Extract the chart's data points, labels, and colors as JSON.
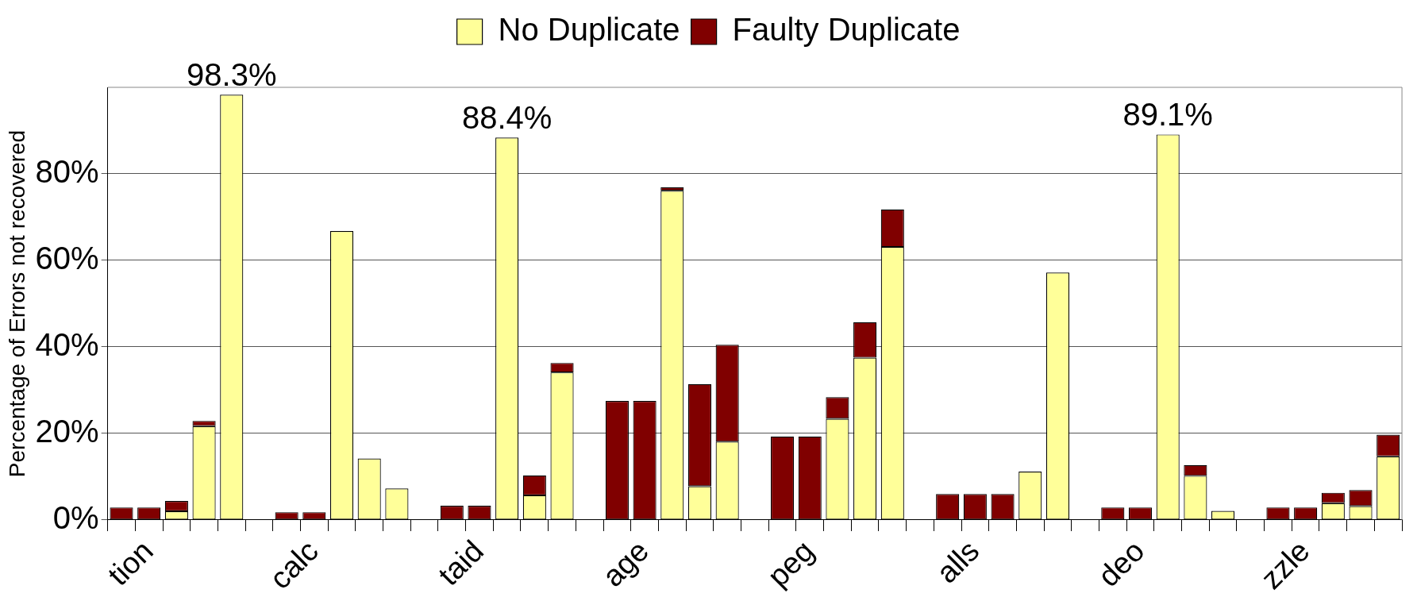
{
  "chart_data": {
    "type": "bar",
    "stacked": true,
    "grid": "y",
    "legend": "top",
    "ylabel": "Percentage of Errors not recovered",
    "categories": [
      null,
      "tion",
      null,
      null,
      null,
      null,
      null,
      "calc",
      null,
      null,
      null,
      null,
      null,
      "taid",
      null,
      null,
      null,
      null,
      null,
      "age",
      null,
      null,
      null,
      null,
      null,
      "peg",
      null,
      null,
      null,
      null,
      null,
      "alls",
      null,
      null,
      null,
      null,
      null,
      "deo",
      null,
      null,
      null,
      null,
      null,
      "zzle",
      null,
      null,
      null
    ],
    "ylim": [
      0,
      100
    ],
    "yticks": [
      {
        "value": 0,
        "label": "0%"
      },
      {
        "value": 20,
        "label": "20%"
      },
      {
        "value": 40,
        "label": "40%"
      },
      {
        "value": 60,
        "label": "60%"
      },
      {
        "value": 80,
        "label": "80%"
      }
    ],
    "series": [
      {
        "name": "No Duplicate",
        "color": "#ffff99",
        "values": [
          0,
          0,
          2.0,
          21.7,
          98.3,
          null,
          0,
          0,
          66.8,
          14.2,
          7.3,
          null,
          0,
          0,
          88.4,
          5.7,
          34.1,
          null,
          0,
          0,
          76.1,
          7.8,
          18.1,
          null,
          0,
          0,
          23.4,
          37.5,
          63.1,
          null,
          0,
          0,
          0,
          11.2,
          57.2,
          null,
          0,
          0,
          89.1,
          10.2,
          2.1,
          null,
          0,
          0,
          3.9,
          3.2,
          14.7
        ],
        "value_labels": [
          null,
          null,
          null,
          null,
          "98.3%",
          null,
          null,
          null,
          null,
          null,
          null,
          null,
          null,
          null,
          "88.4%",
          null,
          null,
          null,
          null,
          null,
          null,
          null,
          null,
          null,
          null,
          null,
          null,
          null,
          null,
          null,
          null,
          null,
          null,
          null,
          null,
          null,
          null,
          null,
          "89.1%",
          null,
          null,
          null,
          null,
          null,
          null,
          null,
          null
        ]
      },
      {
        "name": "Faulty Duplicate",
        "color": "#800000",
        "values": [
          2.9,
          2.9,
          2.4,
          1.2,
          0,
          null,
          1.8,
          1.8,
          0,
          0,
          0,
          null,
          3.3,
          3.3,
          0,
          4.6,
          2.2,
          null,
          27.5,
          27.5,
          0.8,
          23.6,
          22.4,
          null,
          19.3,
          19.3,
          5.0,
          8.2,
          8.7,
          null,
          6.0,
          6.0,
          6.0,
          0,
          0,
          null,
          2.9,
          2.9,
          0,
          2.5,
          0,
          null,
          2.9,
          2.9,
          2.4,
          3.7,
          5.0
        ]
      }
    ]
  }
}
